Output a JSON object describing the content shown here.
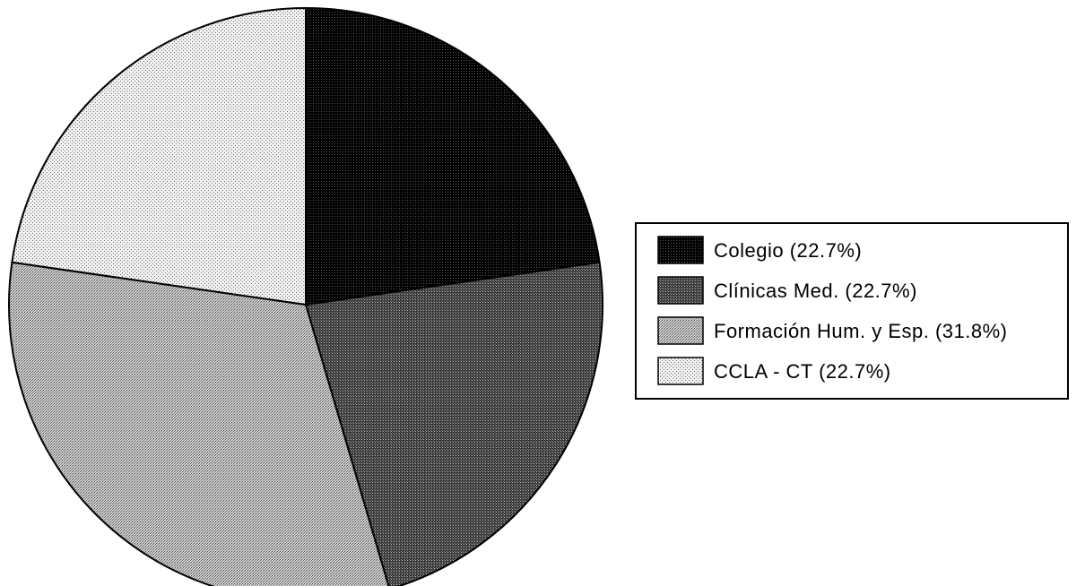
{
  "chart_data": {
    "type": "pie",
    "title": "",
    "slices": [
      {
        "label": "Colegio",
        "value": 22.7,
        "legend_text": "Colegio (22.7%)",
        "pattern": "dark",
        "color": "#1a1a1a"
      },
      {
        "label": "Clínicas Med.",
        "value": 22.7,
        "legend_text": "Clínicas Med. (22.7%)",
        "pattern": "medium-dark",
        "color": "#555555"
      },
      {
        "label": "Formación Hum. y Esp.",
        "value": 31.8,
        "legend_text": "Formación Hum. y Esp. (31.8%)",
        "pattern": "medium-light",
        "color": "#9a9a9a"
      },
      {
        "label": "CCLA - CT",
        "value": 22.7,
        "legend_text": "CCLA - CT (22.7%)",
        "pattern": "light",
        "color": "#d6d6d6"
      }
    ],
    "start_angle": "12 o'clock",
    "direction": "clockwise",
    "legend_position": "right",
    "legend_border": true,
    "data_labels": false
  }
}
